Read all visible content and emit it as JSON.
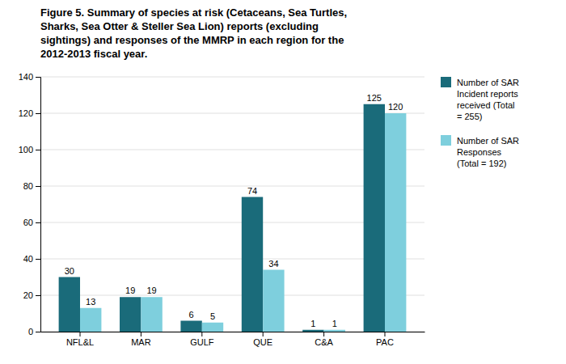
{
  "chart_data": {
    "type": "bar",
    "title": "Figure 5. Summary of species at risk (Cetaceans, Sea Turtles,\nSharks, Sea Otter & Steller Sea Lion) reports (excluding\nsightings) and responses of the MMRP in each region for the\n2012-2013 fiscal year.",
    "categories": [
      "NFL&L",
      "MAR",
      "GULF",
      "QUE",
      "C&A",
      "PAC"
    ],
    "series": [
      {
        "name": "Number of SAR\nIncident reports\nreceived (Total\n= 255)",
        "color": "#1a6b7a",
        "values": [
          30,
          19,
          6,
          74,
          1,
          125
        ]
      },
      {
        "name": "Number of SAR\nResponses\n(Total = 192)",
        "color": "#7ecfdd",
        "values": [
          13,
          19,
          5,
          34,
          1,
          120
        ]
      }
    ],
    "ylim": [
      0,
      140
    ],
    "yticks": [
      0,
      20,
      40,
      60,
      80,
      100,
      120,
      140
    ],
    "grid": true,
    "data_labels": true,
    "legend": "right"
  }
}
